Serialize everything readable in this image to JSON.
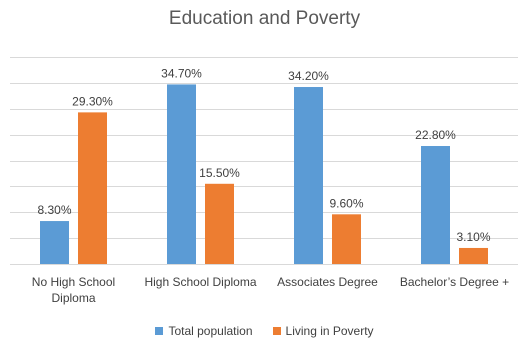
{
  "chart_data": {
    "type": "bar",
    "title": "Education and Poverty",
    "categories": [
      [
        "No High School",
        "Diploma"
      ],
      [
        "High School Diploma"
      ],
      [
        "Associates Degree"
      ],
      [
        "Bachelor’s Degree +"
      ]
    ],
    "series": [
      {
        "name": "Total population",
        "color": "#5B9BD5",
        "values": [
          8.3,
          34.7,
          34.2,
          22.8
        ],
        "labels": [
          "8.30%",
          "34.70%",
          "34.20%",
          "22.80%"
        ]
      },
      {
        "name": "Living in Poverty",
        "color": "#ED7D31",
        "values": [
          29.3,
          15.5,
          9.6,
          3.1
        ],
        "labels": [
          "29.30%",
          "15.50%",
          "9.60%",
          "3.10%"
        ]
      }
    ],
    "ylim": [
      0,
      40
    ],
    "y_gridlines": [
      0,
      5,
      10,
      15,
      20,
      25,
      30,
      35,
      40
    ],
    "grid": true,
    "legend_position": "bottom",
    "gridline_color": "#D9D9D9"
  }
}
